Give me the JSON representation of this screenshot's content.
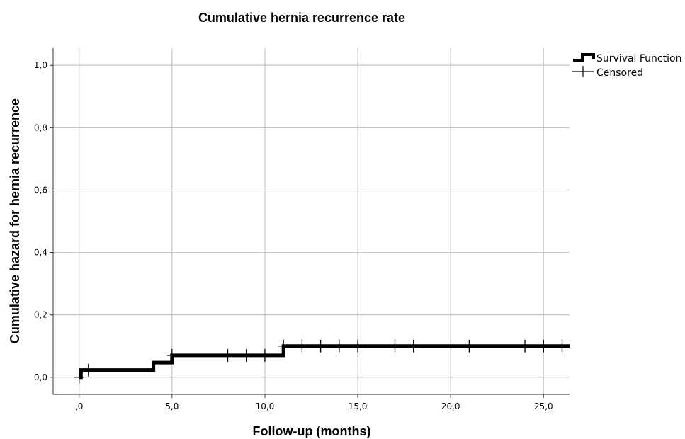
{
  "chart_data": {
    "type": "line",
    "title": "Cumulative hernia recurrence rate",
    "xlabel": "Follow-up (months)",
    "ylabel": "Cumulative hazard for hernia recurrence",
    "xlim": [
      -1.4,
      26.4
    ],
    "ylim": [
      -0.055,
      1.055
    ],
    "x_ticks": [
      0,
      5,
      10,
      15,
      20,
      25
    ],
    "x_tick_labels": [
      ",0",
      "5,0",
      "10,0",
      "15,0",
      "20,0",
      "25,0"
    ],
    "y_ticks": [
      0,
      0.2,
      0.4,
      0.6,
      0.8,
      1.0
    ],
    "y_tick_labels": [
      "0,0",
      "0,2",
      "0,4",
      "0,6",
      "0,8",
      "1,0"
    ],
    "grid": true,
    "legend_position": "top-right",
    "series": [
      {
        "name": "Survival Function",
        "kind": "step",
        "points": [
          [
            0,
            0
          ],
          [
            0.1,
            0
          ],
          [
            0.1,
            0.023
          ],
          [
            4,
            0.023
          ],
          [
            4,
            0.047
          ],
          [
            5,
            0.047
          ],
          [
            5,
            0.07
          ],
          [
            11,
            0.07
          ],
          [
            11,
            0.1
          ],
          [
            26.4,
            0.1
          ]
        ],
        "color": "#000000"
      },
      {
        "name": "Censored",
        "kind": "censored",
        "points": [
          [
            0,
            0
          ],
          [
            0.5,
            0.023
          ],
          [
            5,
            0.07
          ],
          [
            8,
            0.07
          ],
          [
            9,
            0.07
          ],
          [
            10,
            0.07
          ],
          [
            11,
            0.1
          ],
          [
            12,
            0.1
          ],
          [
            13,
            0.1
          ],
          [
            14,
            0.1
          ],
          [
            15,
            0.1
          ],
          [
            17,
            0.1
          ],
          [
            18,
            0.1
          ],
          [
            21,
            0.1
          ],
          [
            24,
            0.1
          ],
          [
            25,
            0.1
          ],
          [
            26,
            0.1
          ]
        ],
        "color": "#000000"
      }
    ]
  }
}
